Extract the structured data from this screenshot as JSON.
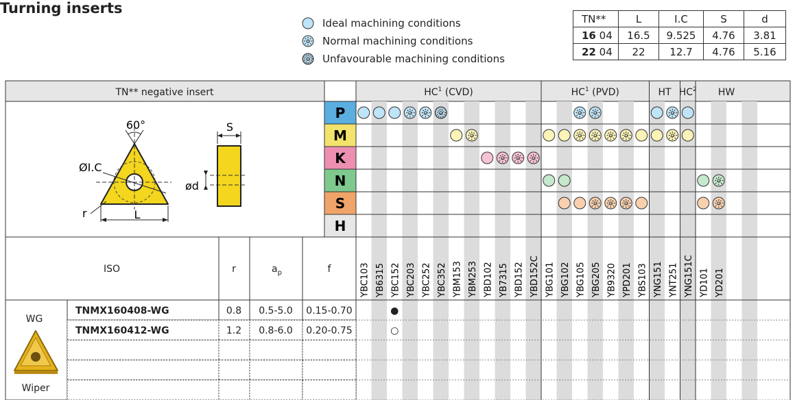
{
  "title": "Turning inserts",
  "legend": [
    {
      "key": "ideal",
      "label": "Ideal machining conditions"
    },
    {
      "key": "normal",
      "label": "Normal machining conditions"
    },
    {
      "key": "unfav",
      "label": "Unfavourable machining conditions"
    }
  ],
  "dims": {
    "header": [
      "TN**",
      "L",
      "I.C",
      "S",
      "d"
    ],
    "rows": [
      {
        "size": "16",
        "code": "04",
        "values": [
          "16.5",
          "9.525",
          "4.76",
          "3.81"
        ]
      },
      {
        "size": "22",
        "code": "04",
        "values": [
          "22",
          "12.7",
          "4.76",
          "5.16"
        ]
      }
    ]
  },
  "insert_header": "TN** negative insert",
  "drawing_labels": {
    "angle": "60°",
    "ic": "ØI.C",
    "r": "r",
    "l": "L",
    "s": "S",
    "d": "ød"
  },
  "groups": [
    {
      "label": "HC",
      "sup": "1",
      "suffix": " (CVD)",
      "start": 0,
      "end": 11
    },
    {
      "label": "HC",
      "sup": "1",
      "suffix": " (PVD)",
      "start": 12,
      "end": 18
    },
    {
      "label": "HT",
      "sup": "",
      "suffix": "",
      "start": 19,
      "end": 20
    },
    {
      "label": "HC",
      "sup": "2",
      "suffix": "",
      "start": 21,
      "end": 21
    },
    {
      "label": "HW",
      "sup": "",
      "suffix": "",
      "start": 22,
      "end": 25
    }
  ],
  "grades": [
    "YBC103",
    "YB6315",
    "YBC152",
    "YBC203",
    "YBC252",
    "YBC352",
    "YBM153",
    "YBM253",
    "YBD102",
    "YB7315",
    "YBD152",
    "YBD152C",
    "YBG101",
    "YBG102",
    "YBG105",
    "YBG205",
    "YB9320",
    "YPD201",
    "YBS103",
    "YNG151",
    "YNT251",
    "YNG151C",
    "YD101",
    "YD201",
    "",
    ""
  ],
  "materials": [
    {
      "code": "P",
      "color": "#5aaee0",
      "fill": "#bfe3f7",
      "marks": {
        "0": "ideal",
        "1": "ideal",
        "2": "ideal",
        "3": "normal",
        "4": "normal",
        "5": "unfav",
        "14": "normal",
        "15": "normal",
        "19": "ideal",
        "20": "normal",
        "21": "ideal"
      }
    },
    {
      "code": "M",
      "color": "#f3e26b",
      "fill": "#fbf3b7",
      "marks": {
        "6": "ideal",
        "7": "normal",
        "12": "ideal",
        "13": "ideal",
        "14": "normal",
        "15": "normal",
        "16": "normal",
        "17": "normal",
        "18": "ideal",
        "19": "ideal",
        "20": "normal",
        "21": "ideal"
      }
    },
    {
      "code": "K",
      "color": "#ec8fb1",
      "fill": "#f7c2d6",
      "marks": {
        "8": "ideal",
        "9": "normal",
        "10": "normal",
        "11": "normal"
      }
    },
    {
      "code": "N",
      "color": "#7fc98f",
      "fill": "#c6e8cd",
      "marks": {
        "12": "ideal",
        "13": "ideal",
        "22": "ideal",
        "23": "normal"
      }
    },
    {
      "code": "S",
      "color": "#f1a469",
      "fill": "#f9d0ae",
      "marks": {
        "13": "ideal",
        "14": "ideal",
        "15": "normal",
        "16": "normal",
        "17": "normal",
        "18": "ideal",
        "22": "ideal",
        "23": "normal"
      }
    },
    {
      "code": "H",
      "color": "#e7e7e7",
      "fill": "#e7e7e7",
      "marks": {}
    }
  ],
  "param_headers": {
    "iso": "ISO",
    "r": "r",
    "ap": "a",
    "ap_sub": "p",
    "f": "f"
  },
  "chipbreaker": {
    "code": "WG",
    "type": "Wiper"
  },
  "products": [
    {
      "iso": "TNMX160408-WG",
      "r": "0.8",
      "ap": "0.5-5.0",
      "f": "0.15-0.70",
      "grade_index": 2,
      "mark": "●"
    },
    {
      "iso": "TNMX160412-WG",
      "r": "1.2",
      "ap": "0.8-6.0",
      "f": "0.20-0.75",
      "grade_index": 2,
      "mark": "○"
    }
  ],
  "colors": {
    "header_bg": "#e6e6e6",
    "stripe": "#dcdcdc",
    "insert_yellow": "#f3d61d"
  }
}
